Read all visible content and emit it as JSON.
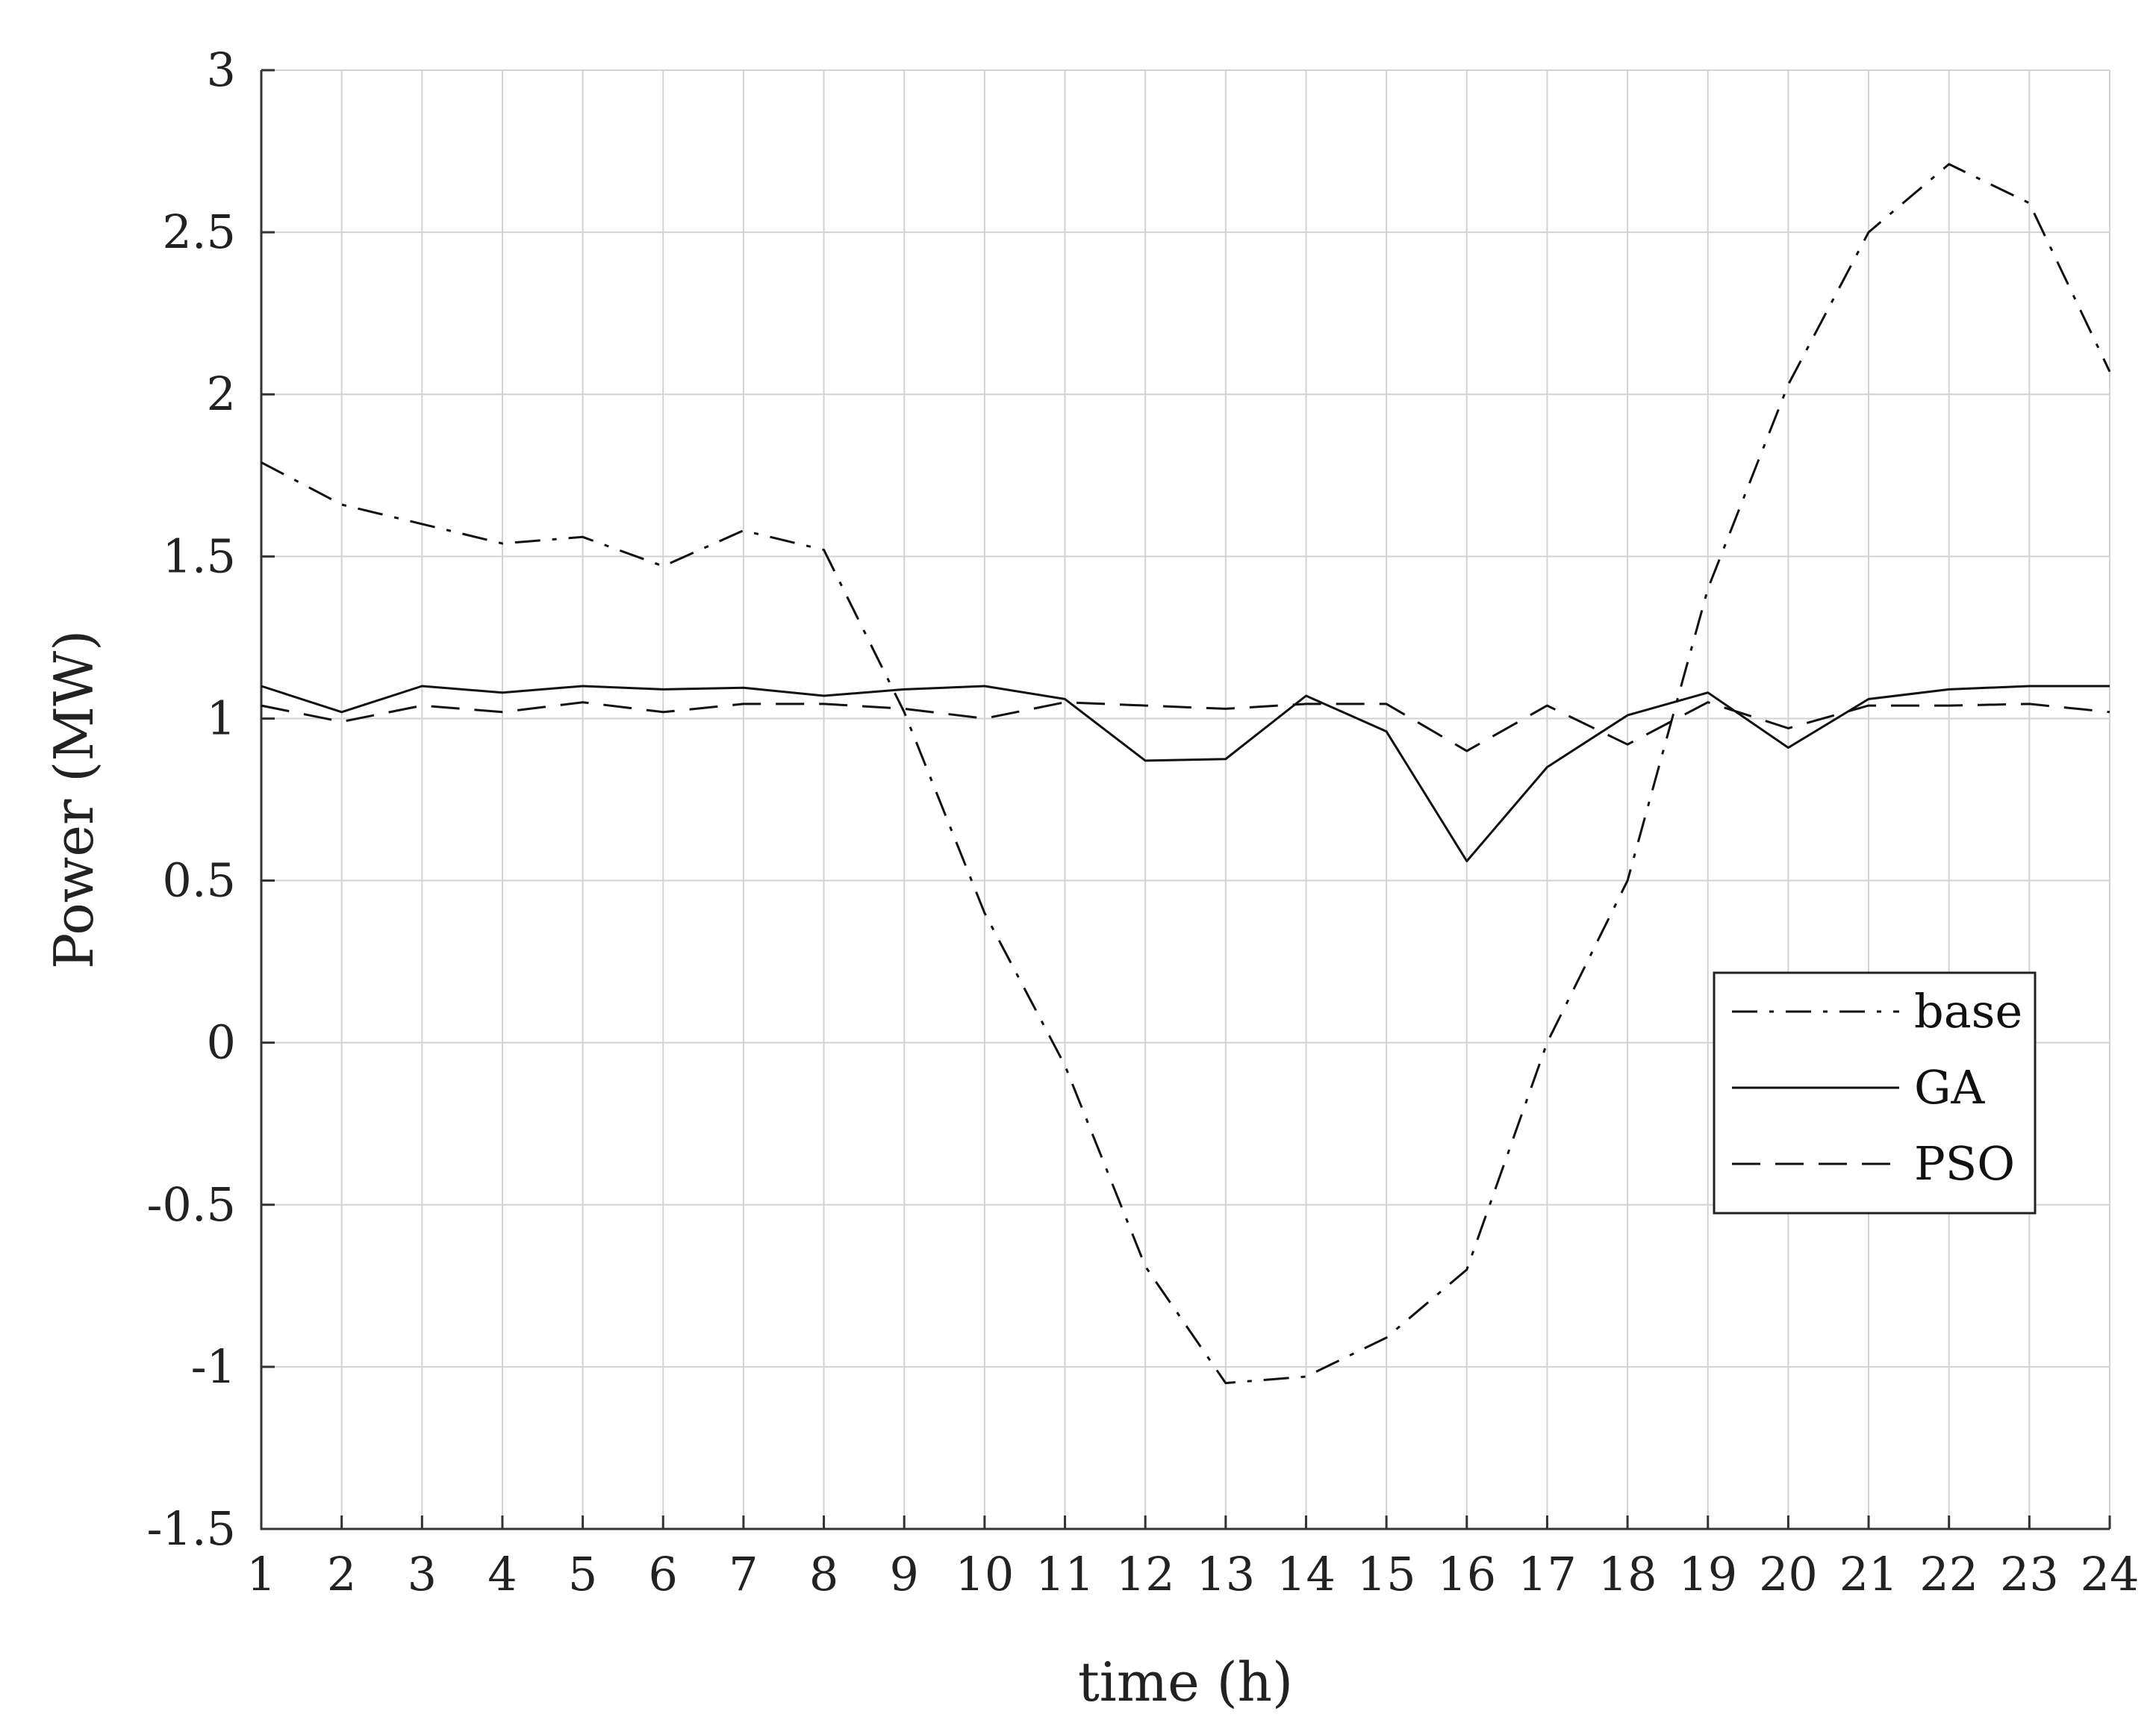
{
  "chart_data": {
    "type": "line",
    "title": "",
    "xlabel": "time (h)",
    "ylabel": "Power (MW)",
    "x": [
      1,
      2,
      3,
      4,
      5,
      6,
      7,
      8,
      9,
      10,
      11,
      12,
      13,
      14,
      15,
      16,
      17,
      18,
      19,
      20,
      21,
      22,
      23,
      24
    ],
    "xlim": [
      1,
      24
    ],
    "ylim": [
      -1.5,
      3
    ],
    "xticks": [
      "1",
      "2",
      "3",
      "4",
      "5",
      "6",
      "7",
      "8",
      "9",
      "10",
      "11",
      "12",
      "13",
      "14",
      "15",
      "16",
      "17",
      "18",
      "19",
      "20",
      "21",
      "22",
      "23",
      "24"
    ],
    "yticks": [
      {
        "value": 3,
        "label": "3"
      },
      {
        "value": 2.5,
        "label": "2.5"
      },
      {
        "value": 2,
        "label": "2"
      },
      {
        "value": 1.5,
        "label": "1.5"
      },
      {
        "value": 1,
        "label": "1"
      },
      {
        "value": 0.5,
        "label": "0.5"
      },
      {
        "value": 0,
        "label": "0"
      },
      {
        "value": -0.5,
        "label": "-0.5"
      },
      {
        "value": -1,
        "label": "-1"
      },
      {
        "value": -1.5,
        "label": "-1.5"
      }
    ],
    "grid": true,
    "legend_position": "right",
    "series": [
      {
        "name": "base",
        "style": "dashdot",
        "color": "#111111",
        "values": [
          1.79,
          1.66,
          1.6,
          1.54,
          1.56,
          1.47,
          1.58,
          1.52,
          1.02,
          0.4,
          -0.07,
          -0.69,
          -1.05,
          -1.03,
          -0.91,
          -0.7,
          0.0,
          0.5,
          1.4,
          2.03,
          2.5,
          2.71,
          2.59,
          2.07
        ]
      },
      {
        "name": "GA",
        "style": "solid",
        "color": "#111111",
        "values": [
          1.1,
          1.02,
          1.1,
          1.08,
          1.1,
          1.09,
          1.095,
          1.07,
          1.09,
          1.1,
          1.06,
          0.87,
          0.875,
          1.07,
          0.96,
          0.56,
          0.85,
          1.01,
          1.08,
          0.91,
          1.06,
          1.09,
          1.1,
          1.1
        ]
      },
      {
        "name": "PSO",
        "style": "dashed",
        "color": "#111111",
        "values": [
          1.04,
          0.99,
          1.04,
          1.02,
          1.05,
          1.02,
          1.045,
          1.045,
          1.03,
          1.0,
          1.05,
          1.04,
          1.03,
          1.045,
          1.045,
          0.9,
          1.04,
          0.92,
          1.05,
          0.97,
          1.04,
          1.04,
          1.045,
          1.02
        ]
      }
    ]
  }
}
